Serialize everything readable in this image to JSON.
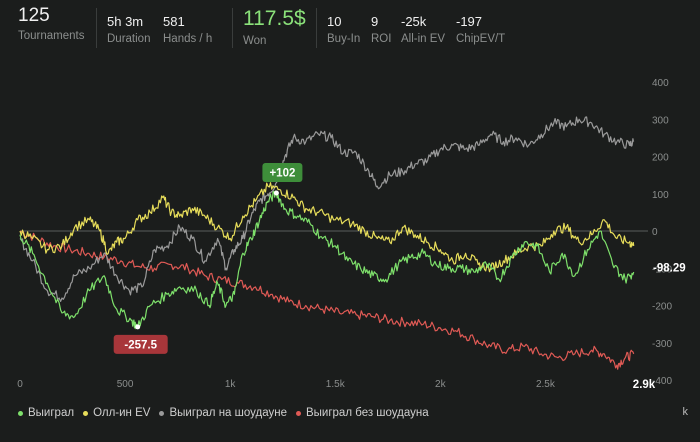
{
  "stats": {
    "tournaments": {
      "value": "125",
      "label": "Tournaments"
    },
    "duration": {
      "value": "5h 3m",
      "label": "Duration"
    },
    "hands_per_hour": {
      "value": "581",
      "label": "Hands / h"
    },
    "won": {
      "value": "117.5$",
      "label": "Won"
    },
    "buy_in": {
      "value": "10",
      "label": "Buy-In"
    },
    "roi": {
      "value": "9",
      "label": "ROI"
    },
    "allin_ev": {
      "value": "-25k",
      "label": "All-in EV"
    },
    "chipev": {
      "value": "-197",
      "label": "ChipEV/T"
    }
  },
  "chart_data": {
    "type": "line",
    "x_ticks": [
      "0",
      "500",
      "1k",
      "1.5k",
      "2k",
      "2.5k"
    ],
    "x_end_label": "2.9k",
    "xlim": [
      0,
      2950
    ],
    "y_ticks": [
      "400",
      "300",
      "200",
      "100",
      "0",
      "-100",
      "-200",
      "-300",
      "-400"
    ],
    "ylim": [
      -450,
      400
    ],
    "grid": false,
    "series": [
      {
        "name": "Выиграл",
        "color": "#7ee06b",
        "x": [
          0,
          60,
          130,
          200,
          260,
          330,
          400,
          460,
          530,
          560,
          620,
          700,
          760,
          840,
          900,
          940,
          980,
          1020,
          1060,
          1100,
          1140,
          1180,
          1220,
          1260,
          1320,
          1380,
          1440,
          1500,
          1560,
          1620,
          1680,
          1740,
          1800,
          1860,
          1920,
          1980,
          2040,
          2100,
          2160,
          2220,
          2280,
          2340,
          2400,
          2460,
          2520,
          2580,
          2640,
          2700,
          2760,
          2820,
          2880,
          2920
        ],
        "y": [
          -10,
          -60,
          -140,
          -220,
          -230,
          -160,
          -120,
          -210,
          -240,
          -257.5,
          -200,
          -170,
          -150,
          -160,
          -200,
          -140,
          -200,
          -170,
          -60,
          -20,
          30,
          80,
          102,
          60,
          40,
          20,
          -20,
          -40,
          -80,
          -100,
          -120,
          -130,
          -90,
          -70,
          -60,
          -90,
          -100,
          -100,
          -110,
          -90,
          -130,
          -70,
          -30,
          -40,
          -110,
          -60,
          -120,
          -50,
          0,
          -90,
          -130,
          -110
        ]
      },
      {
        "name": "Олл-ин EV",
        "color": "#e7dd5a",
        "x": [
          0,
          60,
          130,
          200,
          260,
          330,
          380,
          420,
          460,
          500,
          560,
          620,
          680,
          720,
          760,
          820,
          880,
          940,
          1000,
          1060,
          1120,
          1180,
          1240,
          1300,
          1360,
          1420,
          1500,
          1580,
          1640,
          1700,
          1760,
          1820,
          1880,
          1940,
          2000,
          2060,
          2120,
          2180,
          2240,
          2300,
          2360,
          2420,
          2480,
          2540,
          2600,
          2660,
          2720,
          2780,
          2840,
          2900,
          2920
        ],
        "y": [
          0,
          -20,
          -50,
          -40,
          10,
          30,
          0,
          -60,
          -30,
          -20,
          30,
          50,
          90,
          50,
          40,
          60,
          40,
          10,
          -20,
          40,
          80,
          120,
          110,
          90,
          60,
          50,
          30,
          20,
          0,
          -20,
          -30,
          10,
          -10,
          -30,
          -50,
          -80,
          -60,
          -90,
          -100,
          -80,
          -60,
          -40,
          -40,
          0,
          10,
          -30,
          -10,
          30,
          -20,
          -30,
          -40
        ]
      },
      {
        "name": "Выиграл на шоудауне",
        "color": "#9a9a9a",
        "x": [
          0,
          60,
          130,
          200,
          260,
          330,
          400,
          460,
          520,
          580,
          640,
          700,
          760,
          820,
          880,
          940,
          980,
          1020,
          1060,
          1100,
          1140,
          1180,
          1220,
          1260,
          1300,
          1360,
          1420,
          1480,
          1540,
          1600,
          1660,
          1700,
          1760,
          1820,
          1880,
          1940,
          2000,
          2060,
          2120,
          2180,
          2240,
          2300,
          2360,
          2420,
          2480,
          2540,
          2600,
          2660,
          2720,
          2780,
          2840,
          2900,
          2920
        ],
        "y": [
          -20,
          -80,
          -160,
          -180,
          -120,
          -100,
          -60,
          -120,
          -160,
          -150,
          -50,
          -40,
          10,
          -20,
          -80,
          -20,
          -100,
          -50,
          -20,
          40,
          80,
          100,
          130,
          200,
          250,
          240,
          260,
          250,
          210,
          210,
          160,
          120,
          150,
          160,
          180,
          190,
          220,
          230,
          220,
          230,
          260,
          240,
          250,
          230,
          260,
          290,
          280,
          300,
          290,
          260,
          240,
          230,
          240
        ]
      },
      {
        "name": "Выиграл без шоудауна",
        "color": "#e05a55",
        "x": [
          0,
          80,
          160,
          240,
          320,
          400,
          480,
          560,
          640,
          720,
          800,
          880,
          960,
          1040,
          1120,
          1200,
          1280,
          1360,
          1440,
          1520,
          1600,
          1680,
          1760,
          1840,
          1920,
          2000,
          2080,
          2160,
          2240,
          2320,
          2400,
          2480,
          2560,
          2640,
          2720,
          2780,
          2840,
          2880,
          2920
        ],
        "y": [
          0,
          -20,
          -40,
          -50,
          -60,
          -70,
          -80,
          -95,
          -100,
          -90,
          -100,
          -120,
          -130,
          -140,
          -150,
          -170,
          -190,
          -200,
          -210,
          -220,
          -225,
          -230,
          -240,
          -245,
          -250,
          -260,
          -270,
          -290,
          -310,
          -320,
          -310,
          -330,
          -340,
          -330,
          -320,
          -330,
          -360,
          -340,
          -330
        ]
      }
    ],
    "annotations": [
      {
        "label": "+102",
        "x": 1220,
        "y": 102,
        "color": "#3e8e3a"
      },
      {
        "label": "-257.5",
        "x": 560,
        "y": -257.5,
        "color": "#a8363a"
      }
    ],
    "right_value": "-98.29"
  },
  "legend_icon": "k"
}
